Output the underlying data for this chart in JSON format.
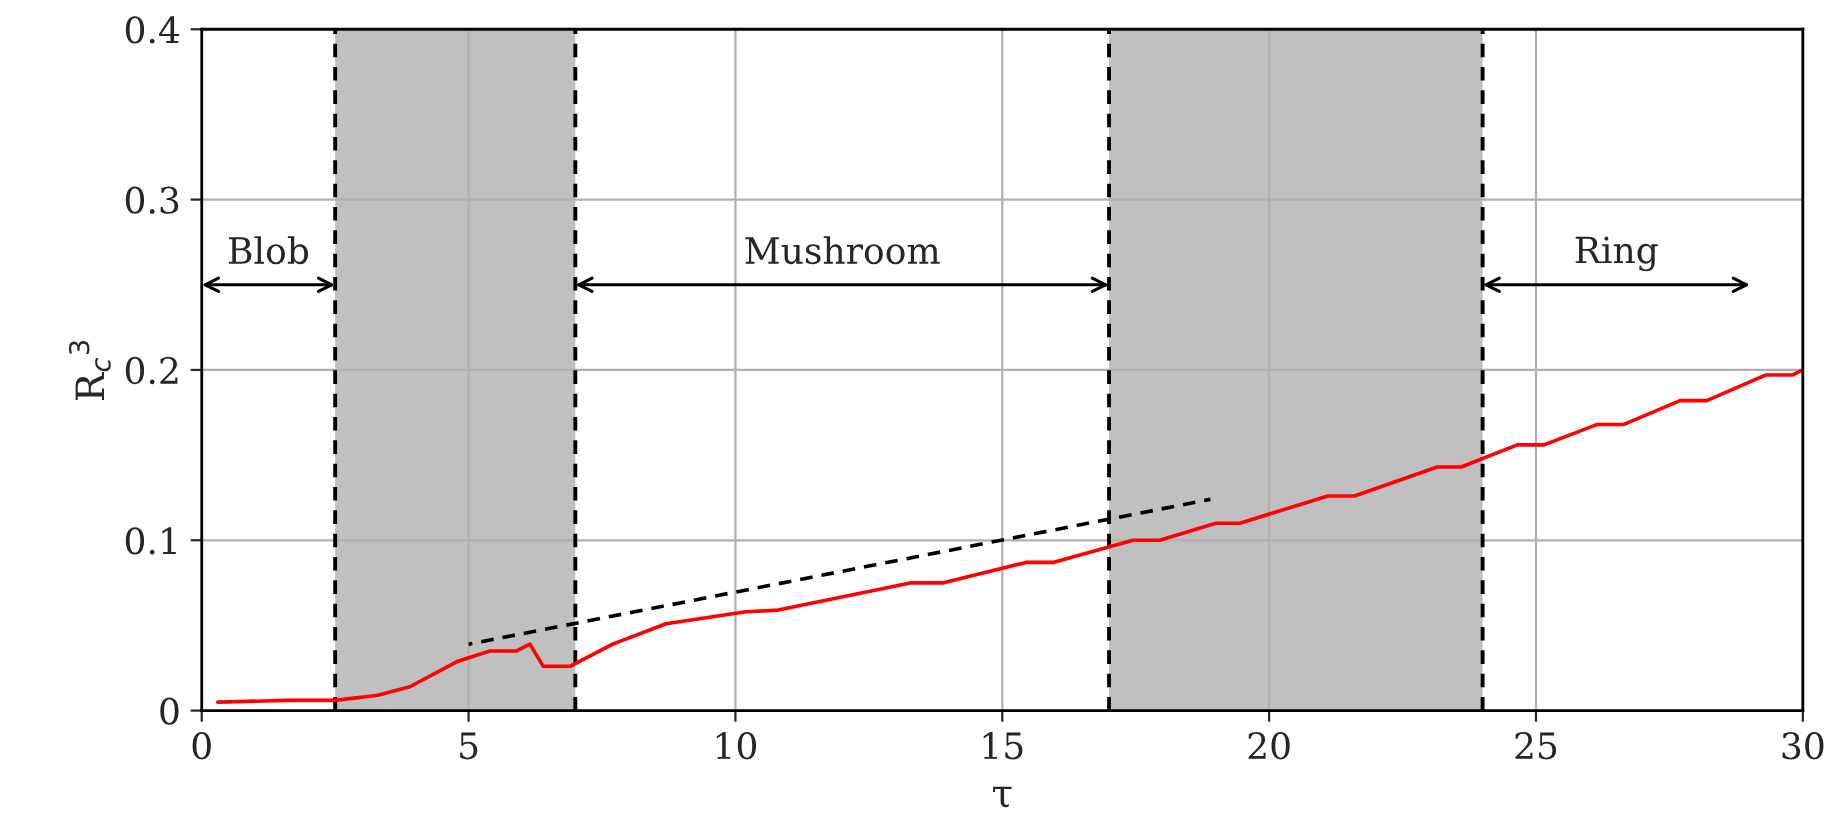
{
  "chart_data": {
    "type": "line",
    "xlabel": "τ",
    "ylabel": "R$_{c}$$^{3}$",
    "xlim": [
      0,
      30
    ],
    "ylim": [
      0,
      0.4
    ],
    "xticks": [
      0,
      5,
      10,
      15,
      20,
      25,
      30
    ],
    "yticks": [
      0,
      0.1,
      0.2,
      0.3,
      0.4
    ],
    "grid": true,
    "series": [
      {
        "color": "#ff0000",
        "x": [
          0.3,
          1.6,
          2.5,
          3.3,
          3.9,
          4.8,
          5.4,
          5.9,
          6.15,
          6.4,
          6.9,
          7.7,
          8.7,
          10.2,
          10.8,
          13.3,
          13.9,
          15.45,
          15.95,
          17.45,
          17.95,
          19.0,
          19.45,
          21.1,
          21.6,
          23.15,
          23.6,
          24.65,
          25.15,
          26.15,
          26.65,
          27.7,
          28.2,
          29.3,
          29.8,
          30
        ],
        "values": [
          0.005,
          0.006,
          0.006,
          0.009,
          0.014,
          0.029,
          0.035,
          0.035,
          0.039,
          0.026,
          0.026,
          0.039,
          0.051,
          0.058,
          0.059,
          0.075,
          0.075,
          0.087,
          0.087,
          0.1,
          0.1,
          0.11,
          0.11,
          0.126,
          0.126,
          0.143,
          0.143,
          0.156,
          0.156,
          0.168,
          0.168,
          0.182,
          0.182,
          0.197,
          0.197,
          0.2
        ]
      },
      {
        "color": "#000000",
        "line_style": "dashed",
        "x": [
          5.0,
          18.9
        ],
        "values": [
          0.039,
          0.124
        ]
      }
    ],
    "bands": [
      {
        "axis": "x",
        "from": 2.5,
        "to": 7,
        "color": "#c0c0c0"
      },
      {
        "axis": "x",
        "from": 17,
        "to": 24,
        "color": "#c0c0c0"
      }
    ],
    "ref_lines": [
      {
        "axis": "x",
        "value": 2.5,
        "color": "#000000",
        "line_style": "dashed"
      },
      {
        "axis": "x",
        "value": 7,
        "color": "#000000",
        "line_style": "dashed"
      },
      {
        "axis": "x",
        "value": 17,
        "color": "#000000",
        "line_style": "dashed"
      },
      {
        "axis": "x",
        "value": 24,
        "color": "#000000",
        "line_style": "dashed"
      }
    ],
    "annotations": [
      "Blob",
      "Mushroom",
      "Ring"
    ]
  }
}
